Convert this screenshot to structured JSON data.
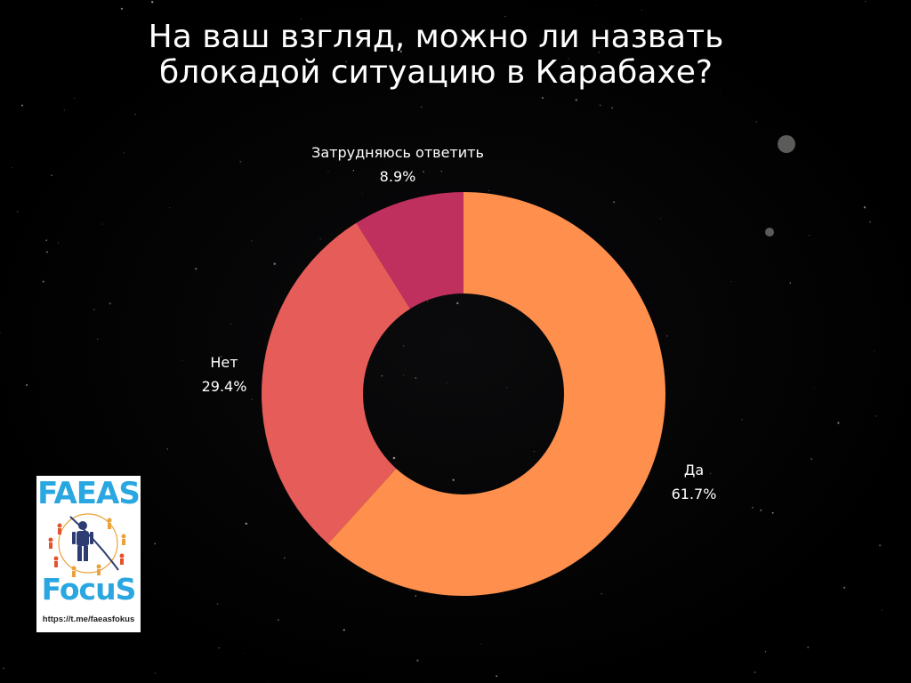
{
  "chart_data": {
    "type": "pie",
    "donut": true,
    "title": "На ваш взгляд, можно ли назвать блокадой ситуацию в Карабахе?",
    "title_lines": [
      "На ваш взгляд, можно ли назвать",
      "блокадой ситуацию в Карабахе?"
    ],
    "slices": [
      {
        "label": "Да",
        "value": 61.7,
        "value_label": "61.7%",
        "color": "#ff8f4c"
      },
      {
        "label": "Нет",
        "value": 29.4,
        "value_label": "29.4%",
        "color": "#e65c59"
      },
      {
        "label": "Затрудняюсь ответить",
        "value": 8.9,
        "value_label": "8.9%",
        "color": "#c0305f"
      }
    ],
    "start": "12 o'clock",
    "direction": "clockwise",
    "legend": "none"
  },
  "branding": {
    "logo_top": "FAEAS",
    "logo_bottom": "FocuS",
    "logo_url": "https://t.me/faeasfokus"
  },
  "colors": {
    "background": "#000000",
    "text": "#ffffff",
    "logo_accent": "#2aa7e0"
  }
}
